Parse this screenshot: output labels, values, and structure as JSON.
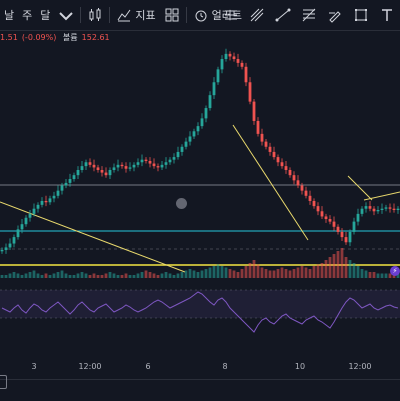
{
  "toolbar": {
    "timeframes": [
      "날",
      "주",
      "달"
    ],
    "compare_label": "",
    "indicators_label": "지표",
    "alerts_label": "얼러트",
    "icons": [
      "candles-icon",
      "indicators-icon",
      "grid-icon",
      "alarm-icon",
      "compare-icon",
      "brush-icon",
      "trend-line-icon",
      "fib-icon",
      "pen-icon",
      "rect-icon",
      "text-icon"
    ]
  },
  "legend": {
    "change": "1.51",
    "change_pct": "(-0.09%)",
    "volume_label": "볼륨",
    "volume_value": "152.61"
  },
  "xaxis": {
    "labels": [
      "3",
      "12:00",
      "6",
      "8",
      "10",
      "12:00"
    ]
  },
  "colors": {
    "background": "#131722",
    "up": "#26a69a",
    "down": "#ef5350",
    "trendline": "#e9d96d",
    "hline_white": "#d1d4dc",
    "hline_teal": "#26c6da",
    "hline_yellow": "#f5e642",
    "rsi": "#7e57c2"
  },
  "chart_data": {
    "type": "candlestick",
    "series": [
      {
        "name": "price",
        "values": [
          20,
          22,
          25,
          30,
          36,
          40,
          45,
          48,
          52,
          55,
          58,
          57,
          60,
          62,
          66,
          70,
          72,
          75,
          78,
          82,
          85,
          88,
          86,
          84,
          82,
          80,
          78,
          82,
          84,
          86,
          85,
          83,
          84,
          86,
          88,
          90,
          89,
          87,
          85,
          84,
          86,
          88,
          90,
          92,
          96,
          100,
          104,
          108,
          112,
          116,
          122,
          130,
          140,
          150,
          160,
          168,
          172,
          170,
          168,
          165,
          162,
          150,
          135,
          120,
          110,
          104,
          100,
          96,
          92,
          88,
          85,
          82,
          78,
          74,
          70,
          66,
          62,
          58,
          54,
          50,
          46,
          44,
          42,
          38,
          34,
          30,
          26,
          34,
          42,
          48,
          52,
          54,
          52,
          50,
          51,
          52,
          53,
          52,
          51,
          52
        ]
      },
      {
        "name": "volume",
        "values": [
          2,
          2,
          3,
          4,
          3,
          2,
          3,
          4,
          5,
          3,
          2,
          3,
          2,
          3,
          4,
          5,
          3,
          2,
          2,
          3,
          4,
          3,
          2,
          3,
          2,
          2,
          3,
          4,
          3,
          2,
          2,
          3,
          2,
          2,
          3,
          4,
          5,
          4,
          3,
          2,
          3,
          4,
          3,
          2,
          3,
          4,
          5,
          6,
          5,
          4,
          5,
          6,
          7,
          8,
          9,
          8,
          7,
          6,
          5,
          4,
          6,
          8,
          10,
          12,
          9,
          7,
          6,
          5,
          5,
          6,
          7,
          6,
          5,
          6,
          7,
          8,
          7,
          6,
          8,
          9,
          10,
          12,
          14,
          16,
          18,
          20,
          14,
          12,
          10,
          8,
          6,
          5,
          4,
          4,
          3,
          3,
          3,
          3,
          3,
          3
        ]
      },
      {
        "name": "rsi",
        "values": [
          52,
          50,
          48,
          52,
          55,
          50,
          47,
          52,
          56,
          54,
          50,
          48,
          52,
          55,
          58,
          54,
          50,
          46,
          50,
          55,
          58,
          54,
          50,
          48,
          52,
          54,
          56,
          52,
          48,
          50,
          52,
          55,
          53,
          50,
          48,
          50,
          52,
          55,
          58,
          60,
          58,
          55,
          52,
          54,
          56,
          58,
          60,
          62,
          65,
          68,
          66,
          62,
          58,
          55,
          60,
          62,
          58,
          52,
          48,
          44,
          40,
          36,
          32,
          28,
          35,
          40,
          42,
          38,
          36,
          40,
          44,
          46,
          42,
          40,
          38,
          36,
          40,
          42,
          44,
          40,
          38,
          35,
          32,
          38,
          45,
          52,
          58,
          62,
          60,
          56,
          52,
          54,
          56,
          52,
          50,
          52,
          54,
          55,
          53,
          52
        ]
      }
    ]
  }
}
